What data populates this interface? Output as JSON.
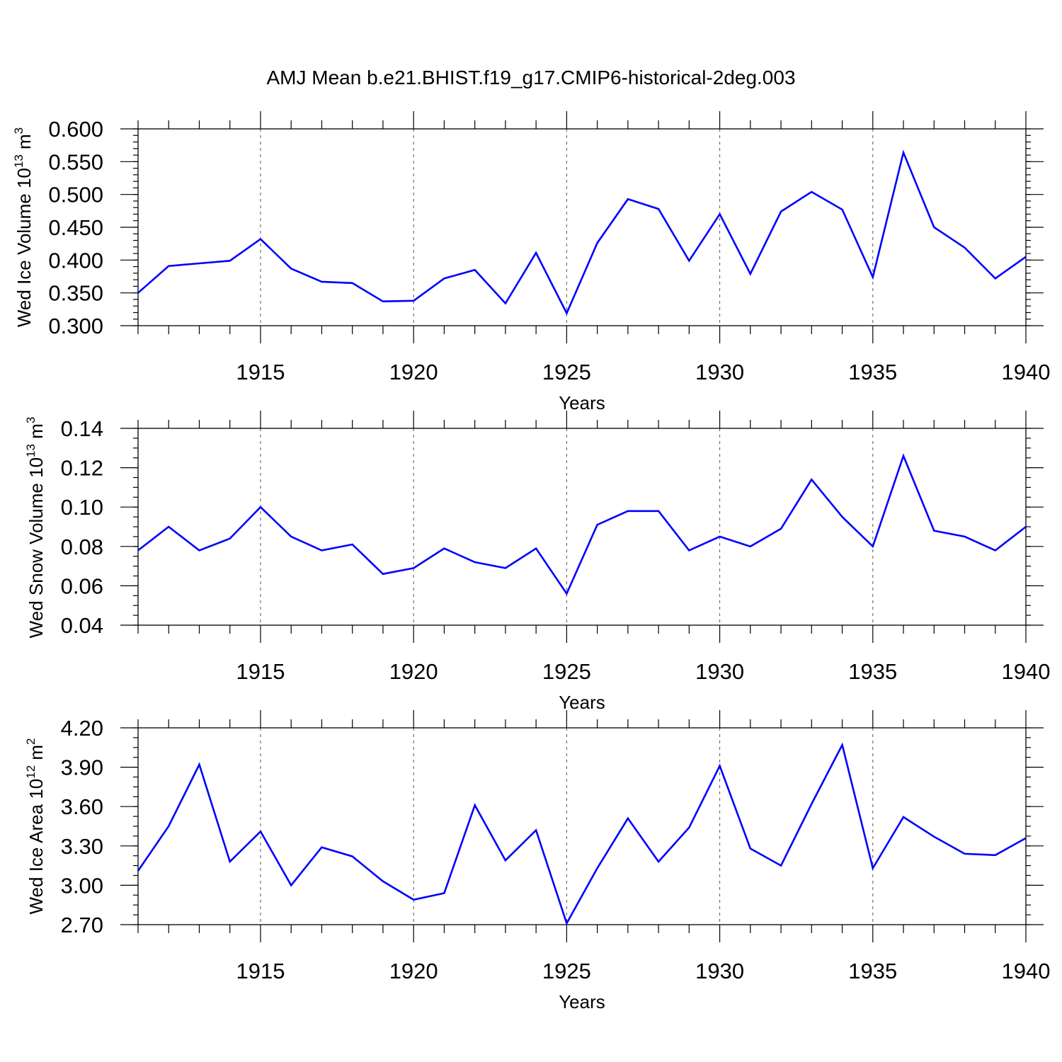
{
  "figure": {
    "title": "AMJ Mean b.e21.BHIST.f19_g17.CMIP6-historical-2deg.003"
  },
  "chart_data": [
    {
      "type": "line",
      "ylabel": "Wed Ice Volume 10",
      "ylabel_sup_exp": "13",
      "ylabel_unit": " m",
      "ylabel_unit_sup": "3",
      "xlabel": "Years",
      "xlim": [
        1911,
        1940
      ],
      "ylim": [
        0.3,
        0.6
      ],
      "yticks": [
        0.3,
        0.35,
        0.4,
        0.45,
        0.5,
        0.55,
        0.6
      ],
      "ytick_labels": [
        "0.300",
        "0.350",
        "0.400",
        "0.450",
        "0.500",
        "0.550",
        "0.600"
      ],
      "yminor_step": 0.01,
      "xticks": [
        1915,
        1920,
        1925,
        1930,
        1935,
        1940
      ],
      "xtick_labels": [
        "1915",
        "1920",
        "1925",
        "1930",
        "1935",
        "1940"
      ],
      "grid": "dashed vertical at major x ticks",
      "series": [
        {
          "name": "Wed Ice Volume",
          "color": "#0000ff",
          "x": [
            1911,
            1912,
            1913,
            1914,
            1915,
            1916,
            1917,
            1918,
            1919,
            1920,
            1921,
            1922,
            1923,
            1924,
            1925,
            1926,
            1927,
            1928,
            1929,
            1930,
            1931,
            1932,
            1933,
            1934,
            1935,
            1936,
            1937,
            1938,
            1939,
            1940
          ],
          "values": [
            0.35,
            0.391,
            0.395,
            0.399,
            0.432,
            0.387,
            0.367,
            0.365,
            0.337,
            0.338,
            0.372,
            0.385,
            0.334,
            0.411,
            0.319,
            0.426,
            0.493,
            0.478,
            0.399,
            0.47,
            0.379,
            0.474,
            0.504,
            0.477,
            0.374,
            0.564,
            0.45,
            0.419,
            0.372,
            0.405
          ]
        }
      ]
    },
    {
      "type": "line",
      "ylabel": "Wed Snow Volume 10",
      "ylabel_sup_exp": "13",
      "ylabel_unit": " m",
      "ylabel_unit_sup": "3",
      "xlabel": "Years",
      "xlim": [
        1911,
        1940
      ],
      "ylim": [
        0.04,
        0.14
      ],
      "yticks": [
        0.04,
        0.06,
        0.08,
        0.1,
        0.12,
        0.14
      ],
      "ytick_labels": [
        "0.04",
        "0.06",
        "0.08",
        "0.10",
        "0.12",
        "0.14"
      ],
      "yminor_step": 0.005,
      "xticks": [
        1915,
        1920,
        1925,
        1930,
        1935,
        1940
      ],
      "xtick_labels": [
        "1915",
        "1920",
        "1925",
        "1930",
        "1935",
        "1940"
      ],
      "grid": "dashed vertical at major x ticks",
      "series": [
        {
          "name": "Wed Snow Volume",
          "color": "#0000ff",
          "x": [
            1911,
            1912,
            1913,
            1914,
            1915,
            1916,
            1917,
            1918,
            1919,
            1920,
            1921,
            1922,
            1923,
            1924,
            1925,
            1926,
            1927,
            1928,
            1929,
            1930,
            1931,
            1932,
            1933,
            1934,
            1935,
            1936,
            1937,
            1938,
            1939,
            1940
          ],
          "values": [
            0.078,
            0.09,
            0.078,
            0.084,
            0.1,
            0.085,
            0.078,
            0.081,
            0.066,
            0.069,
            0.079,
            0.072,
            0.069,
            0.079,
            0.056,
            0.091,
            0.098,
            0.098,
            0.078,
            0.085,
            0.08,
            0.089,
            0.114,
            0.095,
            0.08,
            0.126,
            0.088,
            0.085,
            0.078,
            0.09
          ]
        }
      ]
    },
    {
      "type": "line",
      "ylabel": "Wed Ice Area 10",
      "ylabel_sup_exp": "12",
      "ylabel_unit": " m",
      "ylabel_unit_sup": "2",
      "xlabel": "Years",
      "xlim": [
        1911,
        1940
      ],
      "ylim": [
        2.7,
        4.2
      ],
      "yticks": [
        2.7,
        3.0,
        3.3,
        3.6,
        3.9,
        4.2
      ],
      "ytick_labels": [
        "2.70",
        "3.00",
        "3.30",
        "3.60",
        "3.90",
        "4.20"
      ],
      "yminor_step": 0.075,
      "xticks": [
        1915,
        1920,
        1925,
        1930,
        1935,
        1940
      ],
      "xtick_labels": [
        "1915",
        "1920",
        "1925",
        "1930",
        "1935",
        "1940"
      ],
      "grid": "dashed vertical at major x ticks",
      "series": [
        {
          "name": "Wed Ice Area",
          "color": "#0000ff",
          "x": [
            1911,
            1912,
            1913,
            1914,
            1915,
            1916,
            1917,
            1918,
            1919,
            1920,
            1921,
            1922,
            1923,
            1924,
            1925,
            1926,
            1927,
            1928,
            1929,
            1930,
            1931,
            1932,
            1933,
            1934,
            1935,
            1936,
            1937,
            1938,
            1939,
            1940
          ],
          "values": [
            3.11,
            3.45,
            3.92,
            3.18,
            3.41,
            3.0,
            3.29,
            3.22,
            3.03,
            2.89,
            2.94,
            3.61,
            3.19,
            3.42,
            2.71,
            3.13,
            3.51,
            3.18,
            3.44,
            3.91,
            3.28,
            3.15,
            3.62,
            4.07,
            3.13,
            3.52,
            3.37,
            3.24,
            3.23,
            3.36
          ]
        }
      ]
    }
  ]
}
